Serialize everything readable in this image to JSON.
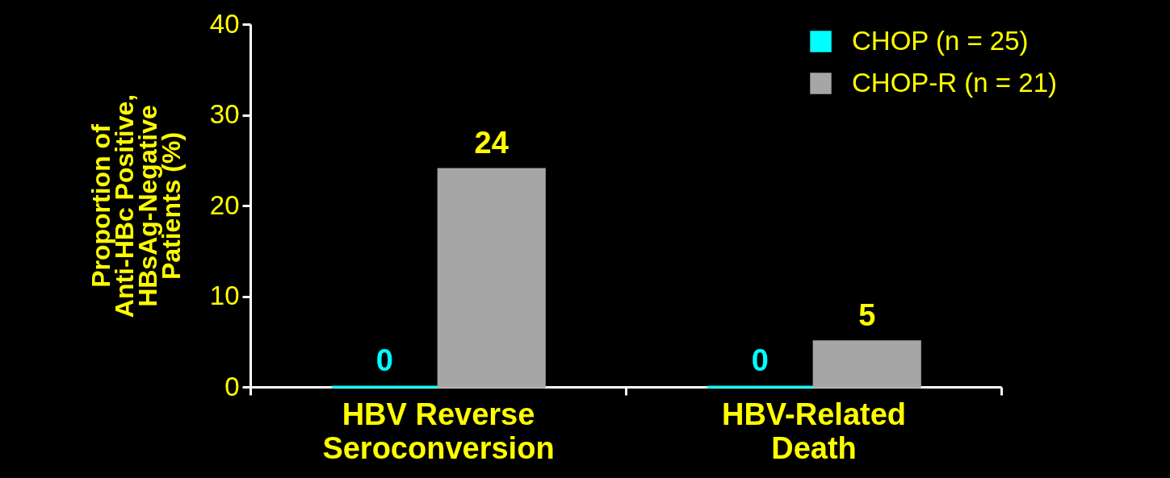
{
  "chart_data": {
    "type": "bar",
    "ylabel": "Proportion of Anti-HBc Positive, HBsAg-Negative Patients (%)",
    "categories": [
      "HBV Reverse Seroconversion",
      "HBV-Related Death"
    ],
    "series": [
      {
        "name": "CHOP (n = 25)",
        "color": "#00ffff",
        "values": [
          0,
          0
        ]
      },
      {
        "name": "CHOP-R (n = 21)",
        "color": "#a6a6a6",
        "values": [
          24,
          5
        ]
      }
    ],
    "ylim": [
      0,
      40
    ],
    "yticks": [
      0,
      10,
      20,
      30,
      40
    ],
    "data_labels": true,
    "grid": false,
    "legend": "top right"
  }
}
